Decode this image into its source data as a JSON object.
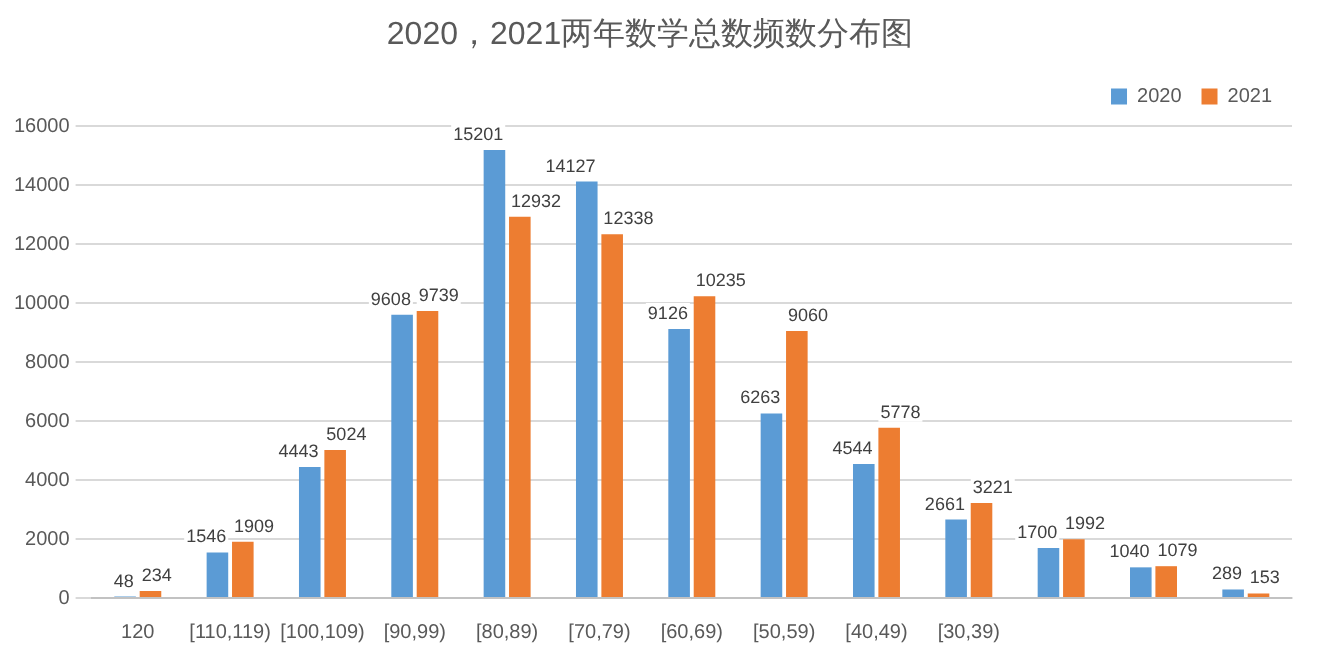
{
  "chart_data": {
    "type": "bar",
    "title": "2020，2021两年数学总数频数分布图",
    "categories": [
      "120",
      "[110,119)",
      "[100,109)",
      "[90,99)",
      "[80,89)",
      "[70,79)",
      "[60,69)",
      "[50,59)",
      "[40,49)",
      "[30,39)",
      null,
      null,
      null
    ],
    "series": [
      {
        "name": "2020",
        "color": "#5b9bd5",
        "values": [
          48,
          1546,
          4443,
          9608,
          15201,
          14127,
          9126,
          6263,
          4544,
          2661,
          1700,
          1040,
          289
        ]
      },
      {
        "name": "2021",
        "color": "#ed7d31",
        "values": [
          234,
          1909,
          5024,
          9739,
          12932,
          12338,
          10235,
          9060,
          5778,
          3221,
          1992,
          1079,
          153
        ]
      }
    ],
    "ylim": [
      0,
      16000
    ],
    "yticks": [
      0,
      2000,
      4000,
      6000,
      8000,
      10000,
      12000,
      14000,
      16000
    ],
    "grid": "y",
    "legend": "top right",
    "data_labels": true
  }
}
